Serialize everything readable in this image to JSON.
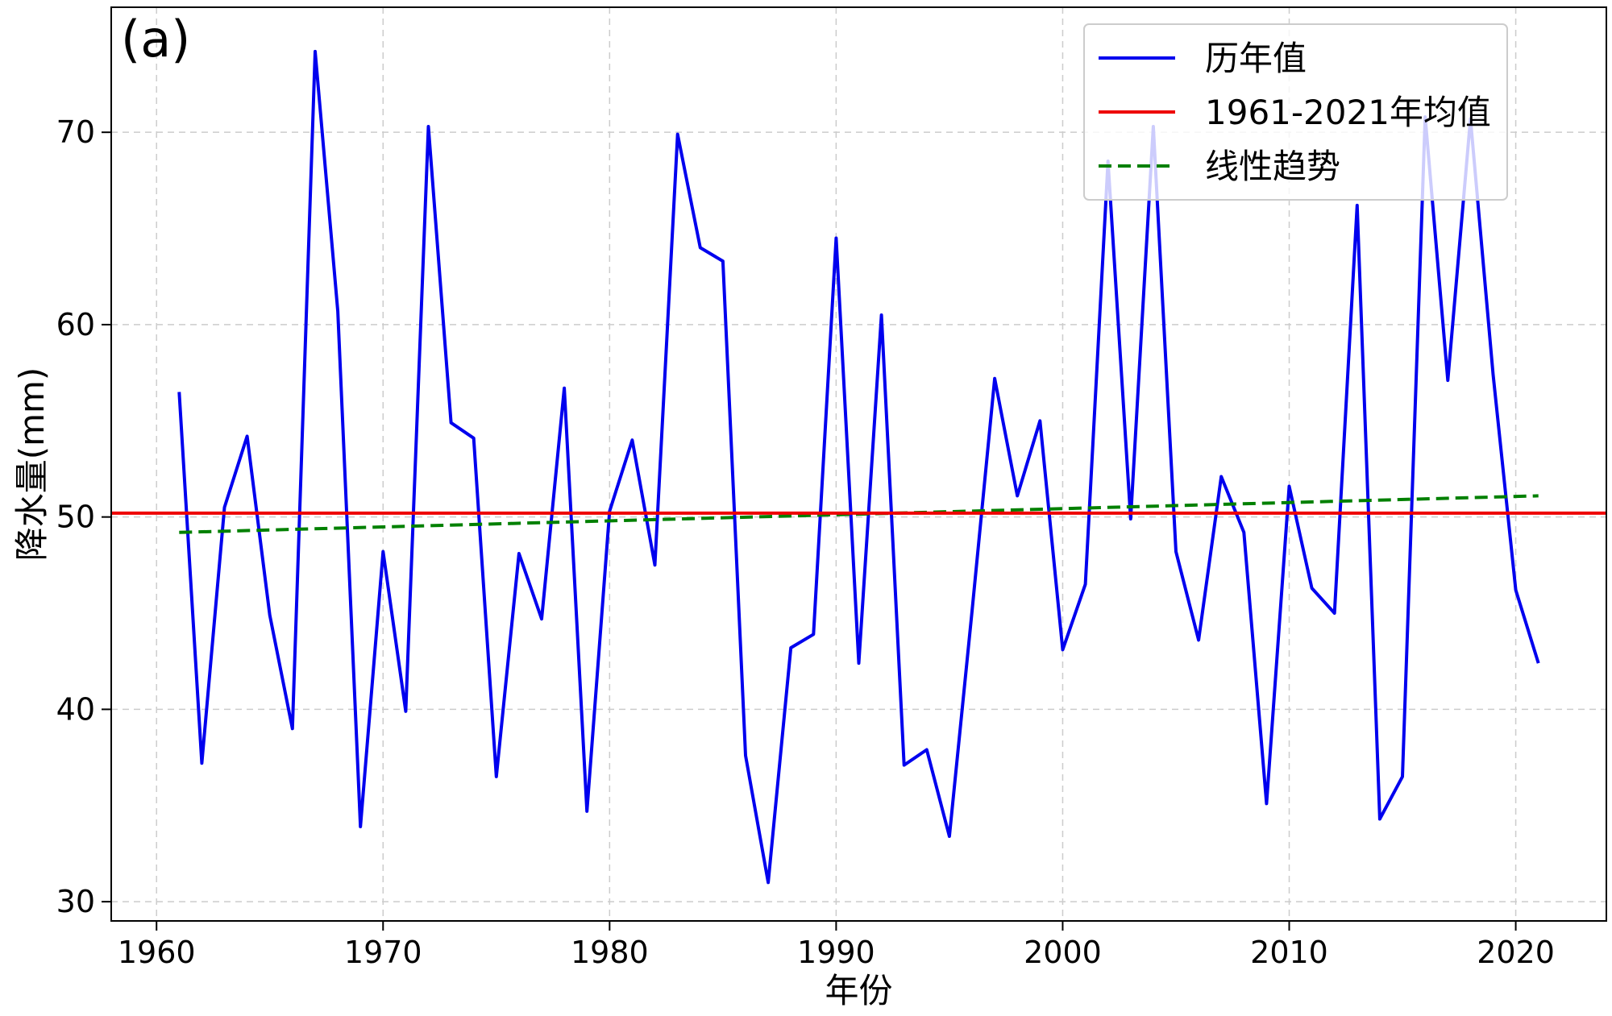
{
  "chart_data": {
    "type": "line",
    "panel_label": "(a)",
    "xlabel": "年份",
    "ylabel": "降水量(mm)",
    "xlim": [
      1958,
      2024
    ],
    "ylim": [
      29,
      76.5
    ],
    "xticks": [
      1960,
      1970,
      1980,
      1990,
      2000,
      2010,
      2020
    ],
    "yticks": [
      30,
      40,
      50,
      60,
      70
    ],
    "grid": true,
    "legend_position": "top-right",
    "legend": [
      "历年值",
      "1961-2021年均值",
      "线性趋势"
    ],
    "colors": {
      "annual": "#0000ee",
      "mean": "#ee0000",
      "trend": "#008000"
    },
    "series": [
      {
        "name": "历年值",
        "x": [
          1961,
          1962,
          1963,
          1964,
          1965,
          1966,
          1967,
          1968,
          1969,
          1970,
          1971,
          1972,
          1973,
          1974,
          1975,
          1976,
          1977,
          1978,
          1979,
          1980,
          1981,
          1982,
          1983,
          1984,
          1985,
          1986,
          1987,
          1988,
          1989,
          1990,
          1991,
          1992,
          1993,
          1994,
          1995,
          1996,
          1997,
          1998,
          1999,
          2000,
          2001,
          2002,
          2003,
          2004,
          2005,
          2006,
          2007,
          2008,
          2009,
          2010,
          2011,
          2012,
          2013,
          2014,
          2015,
          2016,
          2017,
          2018,
          2019,
          2020,
          2021
        ],
        "values": [
          56.5,
          37.2,
          50.5,
          54.2,
          44.9,
          39.0,
          74.2,
          60.7,
          33.9,
          48.2,
          39.9,
          70.3,
          54.9,
          54.1,
          36.5,
          48.1,
          44.7,
          56.7,
          34.7,
          50.3,
          54.0,
          47.5,
          69.9,
          64.0,
          63.3,
          37.6,
          31.0,
          43.2,
          43.9,
          64.5,
          42.4,
          60.5,
          37.1,
          37.9,
          33.4,
          45.1,
          57.2,
          51.1,
          55.0,
          43.1,
          46.5,
          68.5,
          49.9,
          70.3,
          48.2,
          43.6,
          52.1,
          49.2,
          35.1,
          51.6,
          46.3,
          45.0,
          66.2,
          34.3,
          36.5,
          70.8,
          57.1,
          70.7,
          57.4,
          46.2,
          42.4
        ]
      },
      {
        "name": "1961-2021年均值",
        "x": [
          1958,
          2024
        ],
        "values": [
          50.2,
          50.2
        ]
      },
      {
        "name": "线性趋势",
        "x": [
          1961,
          2021
        ],
        "values": [
          49.2,
          51.1
        ]
      }
    ]
  }
}
